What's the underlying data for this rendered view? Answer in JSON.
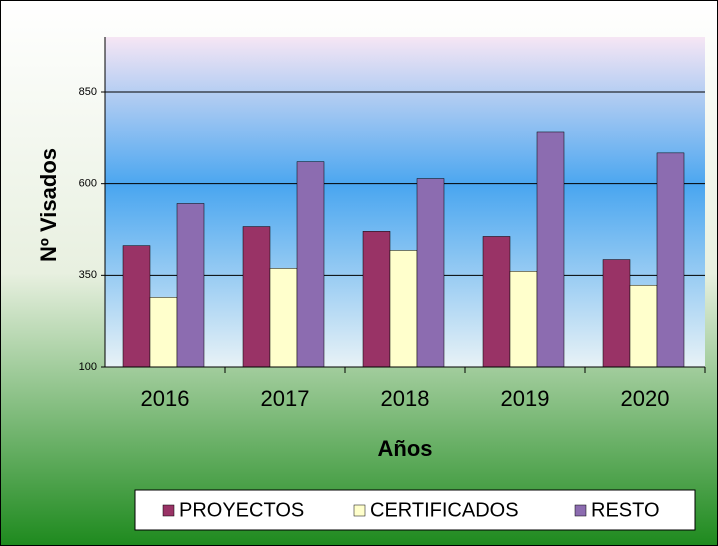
{
  "chart_data": {
    "type": "bar",
    "categories": [
      "2016",
      "2017",
      "2018",
      "2019",
      "2020"
    ],
    "series": [
      {
        "name": "PROYECTOS",
        "color": "#993366",
        "values": [
          431,
          483,
          470,
          456,
          393
        ]
      },
      {
        "name": "CERTIFICADOS",
        "color": "#ffffcc",
        "values": [
          290,
          369,
          418,
          361,
          323
        ]
      },
      {
        "name": "RESTO",
        "color": "#8c6cb0",
        "values": [
          546,
          660,
          614,
          741,
          684
        ]
      }
    ],
    "ylim": [
      100,
      1000
    ],
    "yticks": [
      100,
      350,
      600,
      850
    ],
    "grid": true,
    "y_label": "Nº Visados",
    "x_label": "Años",
    "legend": "bottom"
  }
}
